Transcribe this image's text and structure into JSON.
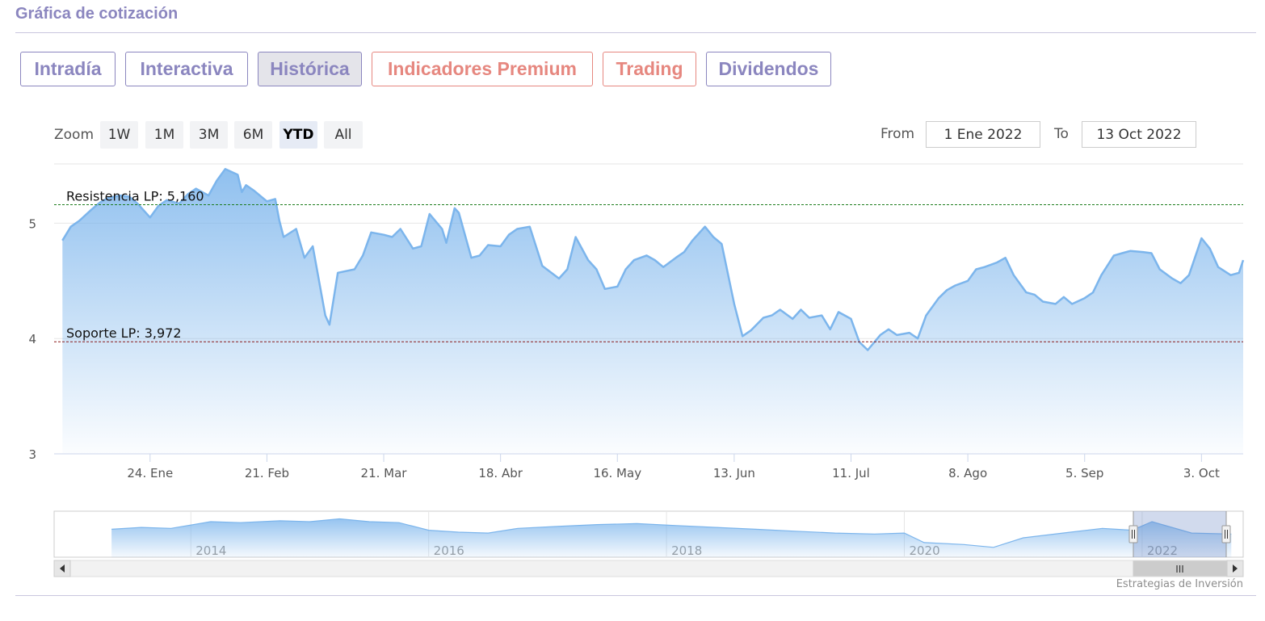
{
  "header": {
    "title": "Gráfica de cotización"
  },
  "tabs": [
    {
      "label": "Intradía",
      "style": "purple"
    },
    {
      "label": "Interactiva",
      "style": "purple"
    },
    {
      "label": "Histórica",
      "style": "purple-active"
    },
    {
      "label": "Indicadores Premium",
      "style": "salmon"
    },
    {
      "label": "Trading",
      "style": "salmon"
    },
    {
      "label": "Dividendos",
      "style": "purple"
    }
  ],
  "zoom": {
    "label": "Zoom",
    "options": [
      "1W",
      "1M",
      "3M",
      "6M",
      "YTD",
      "All"
    ],
    "selected": "YTD"
  },
  "range": {
    "from_label": "From",
    "from_value": "1 Ene 2022",
    "to_label": "To",
    "to_value": "13 Oct 2022"
  },
  "navigator": {
    "year_labels": [
      "2014",
      "2016",
      "2018",
      "2020",
      "2022"
    ],
    "scrollbar_grip": "III"
  },
  "credit": "Estrategias de Inversión",
  "colors": {
    "tab_purple": "#8b86bf",
    "tab_salmon": "#e6877f",
    "series_line": "#7cb5ec",
    "resistance_line": "#1e7d1e",
    "support_line": "#8b1a1a"
  },
  "chart_data": {
    "type": "area",
    "title": "",
    "xlabel": "",
    "ylabel": "",
    "ylim": [
      3,
      5.5
    ],
    "x_range": [
      "2022-01-01",
      "2022-10-13"
    ],
    "y_ticks": [
      "3",
      "4",
      "5"
    ],
    "x_tick_labels": [
      {
        "date": "2022-01-24",
        "label": "24. Ene"
      },
      {
        "date": "2022-02-21",
        "label": "21. Feb"
      },
      {
        "date": "2022-03-21",
        "label": "21. Mar"
      },
      {
        "date": "2022-04-18",
        "label": "18. Abr"
      },
      {
        "date": "2022-05-16",
        "label": "16. May"
      },
      {
        "date": "2022-06-13",
        "label": "13. Jun"
      },
      {
        "date": "2022-07-11",
        "label": "11. Jul"
      },
      {
        "date": "2022-08-08",
        "label": "8. Ago"
      },
      {
        "date": "2022-09-05",
        "label": "5. Sep"
      },
      {
        "date": "2022-10-03",
        "label": "3. Oct"
      }
    ],
    "plot_lines": [
      {
        "label": "Resistencia LP: 5,160",
        "value": 5.16,
        "color": "#1e7d1e"
      },
      {
        "label": "Soporte LP: 3,972",
        "value": 3.972,
        "color": "#8b1a1a"
      }
    ],
    "series": [
      {
        "data": [
          [
            "2022-01-03",
            4.85
          ],
          [
            "2022-01-05",
            4.97
          ],
          [
            "2022-01-07",
            5.02
          ],
          [
            "2022-01-10",
            5.12
          ],
          [
            "2022-01-12",
            5.18
          ],
          [
            "2022-01-14",
            5.22
          ],
          [
            "2022-01-17",
            5.24
          ],
          [
            "2022-01-19",
            5.23
          ],
          [
            "2022-01-21",
            5.17
          ],
          [
            "2022-01-24",
            5.05
          ],
          [
            "2022-01-26",
            5.15
          ],
          [
            "2022-01-28",
            5.2
          ],
          [
            "2022-01-31",
            5.17
          ],
          [
            "2022-02-02",
            5.25
          ],
          [
            "2022-02-04",
            5.3
          ],
          [
            "2022-02-07",
            5.24
          ],
          [
            "2022-02-09",
            5.37
          ],
          [
            "2022-02-11",
            5.47
          ],
          [
            "2022-02-14",
            5.42
          ],
          [
            "2022-02-15",
            5.27
          ],
          [
            "2022-02-16",
            5.33
          ],
          [
            "2022-02-18",
            5.28
          ],
          [
            "2022-02-21",
            5.19
          ],
          [
            "2022-02-23",
            5.21
          ],
          [
            "2022-02-24",
            5.02
          ],
          [
            "2022-02-25",
            4.88
          ],
          [
            "2022-02-28",
            4.95
          ],
          [
            "2022-03-02",
            4.7
          ],
          [
            "2022-03-04",
            4.8
          ],
          [
            "2022-03-07",
            4.2
          ],
          [
            "2022-03-08",
            4.12
          ],
          [
            "2022-03-10",
            4.57
          ],
          [
            "2022-03-14",
            4.6
          ],
          [
            "2022-03-16",
            4.72
          ],
          [
            "2022-03-18",
            4.92
          ],
          [
            "2022-03-21",
            4.9
          ],
          [
            "2022-03-23",
            4.88
          ],
          [
            "2022-03-25",
            4.95
          ],
          [
            "2022-03-28",
            4.78
          ],
          [
            "2022-03-30",
            4.8
          ],
          [
            "2022-04-01",
            5.08
          ],
          [
            "2022-04-04",
            4.95
          ],
          [
            "2022-04-05",
            4.83
          ],
          [
            "2022-04-07",
            5.13
          ],
          [
            "2022-04-08",
            5.09
          ],
          [
            "2022-04-11",
            4.7
          ],
          [
            "2022-04-13",
            4.72
          ],
          [
            "2022-04-15",
            4.81
          ],
          [
            "2022-04-18",
            4.8
          ],
          [
            "2022-04-20",
            4.9
          ],
          [
            "2022-04-22",
            4.95
          ],
          [
            "2022-04-25",
            4.97
          ],
          [
            "2022-04-28",
            4.63
          ],
          [
            "2022-05-02",
            4.52
          ],
          [
            "2022-05-04",
            4.6
          ],
          [
            "2022-05-06",
            4.88
          ],
          [
            "2022-05-09",
            4.68
          ],
          [
            "2022-05-11",
            4.6
          ],
          [
            "2022-05-13",
            4.43
          ],
          [
            "2022-05-16",
            4.45
          ],
          [
            "2022-05-18",
            4.6
          ],
          [
            "2022-05-20",
            4.68
          ],
          [
            "2022-05-23",
            4.72
          ],
          [
            "2022-05-25",
            4.68
          ],
          [
            "2022-05-27",
            4.62
          ],
          [
            "2022-05-30",
            4.7
          ],
          [
            "2022-06-01",
            4.75
          ],
          [
            "2022-06-03",
            4.85
          ],
          [
            "2022-06-06",
            4.97
          ],
          [
            "2022-06-08",
            4.88
          ],
          [
            "2022-06-10",
            4.82
          ],
          [
            "2022-06-13",
            4.3
          ],
          [
            "2022-06-15",
            4.02
          ],
          [
            "2022-06-17",
            4.07
          ],
          [
            "2022-06-20",
            4.18
          ],
          [
            "2022-06-22",
            4.2
          ],
          [
            "2022-06-24",
            4.25
          ],
          [
            "2022-06-27",
            4.17
          ],
          [
            "2022-06-29",
            4.25
          ],
          [
            "2022-07-01",
            4.18
          ],
          [
            "2022-07-04",
            4.2
          ],
          [
            "2022-07-06",
            4.08
          ],
          [
            "2022-07-08",
            4.23
          ],
          [
            "2022-07-11",
            4.17
          ],
          [
            "2022-07-13",
            3.97
          ],
          [
            "2022-07-15",
            3.9
          ],
          [
            "2022-07-18",
            4.03
          ],
          [
            "2022-07-20",
            4.08
          ],
          [
            "2022-07-22",
            4.03
          ],
          [
            "2022-07-25",
            4.05
          ],
          [
            "2022-07-27",
            4.0
          ],
          [
            "2022-07-29",
            4.2
          ],
          [
            "2022-08-01",
            4.35
          ],
          [
            "2022-08-03",
            4.42
          ],
          [
            "2022-08-05",
            4.46
          ],
          [
            "2022-08-08",
            4.5
          ],
          [
            "2022-08-10",
            4.6
          ],
          [
            "2022-08-12",
            4.62
          ],
          [
            "2022-08-15",
            4.66
          ],
          [
            "2022-08-17",
            4.7
          ],
          [
            "2022-08-19",
            4.55
          ],
          [
            "2022-08-22",
            4.4
          ],
          [
            "2022-08-24",
            4.38
          ],
          [
            "2022-08-26",
            4.32
          ],
          [
            "2022-08-29",
            4.3
          ],
          [
            "2022-08-31",
            4.36
          ],
          [
            "2022-09-02",
            4.3
          ],
          [
            "2022-09-05",
            4.35
          ],
          [
            "2022-09-07",
            4.4
          ],
          [
            "2022-09-09",
            4.55
          ],
          [
            "2022-09-12",
            4.72
          ],
          [
            "2022-09-14",
            4.74
          ],
          [
            "2022-09-16",
            4.76
          ],
          [
            "2022-09-19",
            4.75
          ],
          [
            "2022-09-21",
            4.74
          ],
          [
            "2022-09-23",
            4.6
          ],
          [
            "2022-09-26",
            4.52
          ],
          [
            "2022-09-28",
            4.48
          ],
          [
            "2022-09-30",
            4.55
          ],
          [
            "2022-10-03",
            4.87
          ],
          [
            "2022-10-05",
            4.78
          ],
          [
            "2022-10-07",
            4.62
          ],
          [
            "2022-10-10",
            4.55
          ],
          [
            "2022-10-12",
            4.57
          ],
          [
            "2022-10-13",
            4.68
          ]
        ]
      }
    ],
    "navigator_series": [
      [
        "2013-05",
        4.9
      ],
      [
        "2013-08",
        5.0
      ],
      [
        "2013-11",
        4.95
      ],
      [
        "2014-03",
        5.3
      ],
      [
        "2014-06",
        5.25
      ],
      [
        "2014-10",
        5.35
      ],
      [
        "2015-01",
        5.3
      ],
      [
        "2015-04",
        5.45
      ],
      [
        "2015-07",
        5.3
      ],
      [
        "2015-10",
        5.25
      ],
      [
        "2016-01",
        4.85
      ],
      [
        "2016-04",
        4.75
      ],
      [
        "2016-07",
        4.7
      ],
      [
        "2016-10",
        4.95
      ],
      [
        "2017-02",
        5.05
      ],
      [
        "2017-06",
        5.15
      ],
      [
        "2017-10",
        5.2
      ],
      [
        "2018-02",
        5.1
      ],
      [
        "2018-06",
        5.0
      ],
      [
        "2018-10",
        4.9
      ],
      [
        "2019-02",
        4.8
      ],
      [
        "2019-06",
        4.7
      ],
      [
        "2019-10",
        4.65
      ],
      [
        "2020-01",
        4.7
      ],
      [
        "2020-03",
        4.2
      ],
      [
        "2020-07",
        4.1
      ],
      [
        "2020-10",
        3.95
      ],
      [
        "2021-01",
        4.45
      ],
      [
        "2021-05",
        4.7
      ],
      [
        "2021-09",
        4.95
      ],
      [
        "2021-12",
        4.85
      ],
      [
        "2022-02",
        5.3
      ],
      [
        "2022-06",
        4.7
      ],
      [
        "2022-10",
        4.65
      ]
    ]
  }
}
